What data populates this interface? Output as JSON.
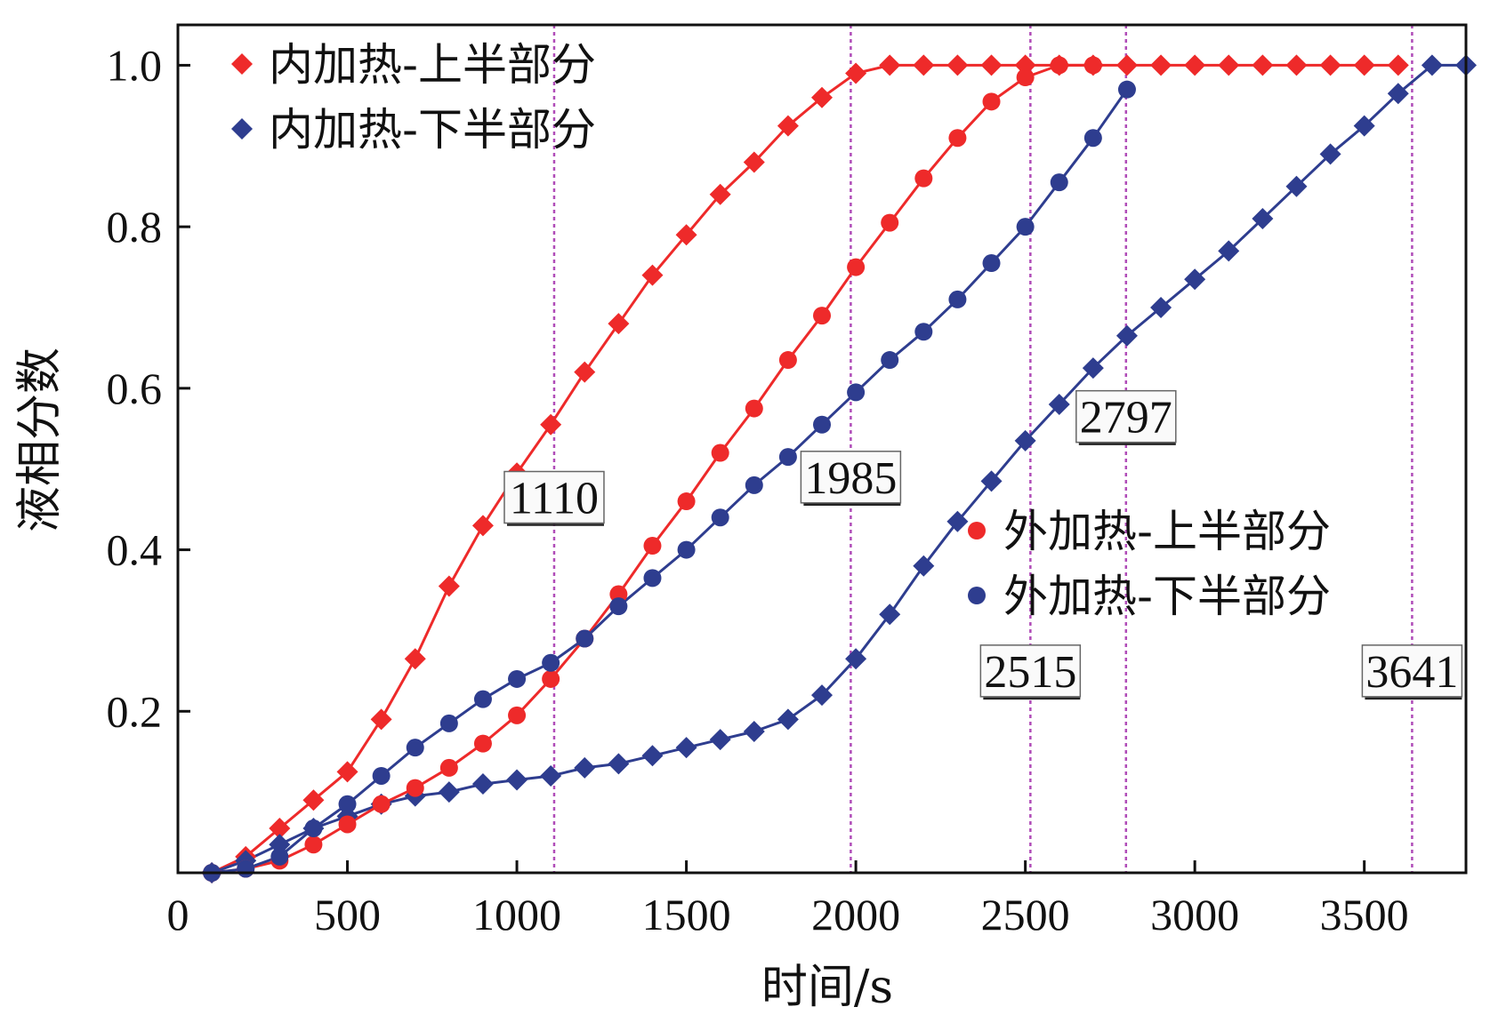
{
  "chart_data": {
    "type": "line",
    "title": "",
    "xlabel": "时间/s",
    "ylabel": "液相分数",
    "xlim": [
      0,
      3800
    ],
    "ylim": [
      0,
      1.05
    ],
    "xticks": [
      0,
      500,
      1000,
      1500,
      2000,
      2500,
      3000,
      3500
    ],
    "xtick_labels": [
      "0",
      "500",
      "1000",
      "1500",
      "2000",
      "2500",
      "3000",
      "3500"
    ],
    "yticks": [
      0.2,
      0.4,
      0.6,
      0.8,
      1.0
    ],
    "ytick_labels": [
      "0.2",
      "0.4",
      "0.6",
      "0.8",
      "1.0"
    ],
    "grid": false,
    "colors": {
      "red": "#ee2a2a",
      "blue": "#2e3d8f",
      "guide": "#b04cb8"
    },
    "vlines": [
      1110,
      1985,
      2515,
      2797,
      3641
    ],
    "annotations": [
      {
        "text": "1110",
        "x": 1110,
        "y": 0.465
      },
      {
        "text": "1985",
        "x": 1985,
        "y": 0.49
      },
      {
        "text": "2797",
        "x": 2797,
        "y": 0.565
      },
      {
        "text": "2515",
        "x": 2515,
        "y": 0.25
      },
      {
        "text": "3641",
        "x": 3641,
        "y": 0.25
      }
    ],
    "legends": [
      {
        "placement": "top-left",
        "items": [
          {
            "label": "内加热-上半部分",
            "series": 0
          },
          {
            "label": "内加热-下半部分",
            "series": 1
          }
        ]
      },
      {
        "placement": "center-right",
        "items": [
          {
            "label": "外加热-上半部分",
            "series": 2
          },
          {
            "label": "外加热-下半部分",
            "series": 3
          }
        ]
      }
    ],
    "series": [
      {
        "name": "内加热-上半部分",
        "color": "#ee2a2a",
        "marker": "diamond",
        "x": [
          100,
          200,
          300,
          400,
          500,
          600,
          700,
          800,
          900,
          1000,
          1100,
          1200,
          1300,
          1400,
          1500,
          1600,
          1700,
          1800,
          1900,
          2000,
          2100,
          2200,
          2300,
          2400,
          2500,
          2600,
          2700,
          2800,
          2900,
          3000,
          3100,
          3200,
          3300,
          3400,
          3500,
          3600
        ],
        "y": [
          0,
          0.02,
          0.055,
          0.09,
          0.125,
          0.19,
          0.265,
          0.355,
          0.43,
          0.495,
          0.555,
          0.62,
          0.68,
          0.74,
          0.79,
          0.84,
          0.88,
          0.925,
          0.96,
          0.99,
          1.0,
          1.0,
          1.0,
          1.0,
          1.0,
          1.0,
          1.0,
          1.0,
          1.0,
          1.0,
          1.0,
          1.0,
          1.0,
          1.0,
          1.0,
          1.0
        ]
      },
      {
        "name": "内加热-下半部分",
        "color": "#2e3d8f",
        "marker": "diamond",
        "x": [
          100,
          200,
          300,
          400,
          500,
          600,
          700,
          800,
          900,
          1000,
          1100,
          1200,
          1300,
          1400,
          1500,
          1600,
          1700,
          1800,
          1900,
          2000,
          2100,
          2200,
          2300,
          2400,
          2500,
          2600,
          2700,
          2800,
          2900,
          3000,
          3100,
          3200,
          3300,
          3400,
          3500,
          3600,
          3700,
          3800
        ],
        "y": [
          0,
          0.015,
          0.035,
          0.055,
          0.07,
          0.085,
          0.095,
          0.1,
          0.11,
          0.115,
          0.12,
          0.13,
          0.135,
          0.145,
          0.155,
          0.165,
          0.175,
          0.19,
          0.22,
          0.265,
          0.32,
          0.38,
          0.435,
          0.485,
          0.535,
          0.58,
          0.625,
          0.665,
          0.7,
          0.735,
          0.77,
          0.81,
          0.85,
          0.89,
          0.925,
          0.965,
          1.0,
          1.0
        ]
      },
      {
        "name": "外加热-上半部分",
        "color": "#ee2a2a",
        "marker": "circle",
        "x": [
          100,
          200,
          300,
          400,
          500,
          600,
          700,
          800,
          900,
          1000,
          1100,
          1200,
          1300,
          1400,
          1500,
          1600,
          1700,
          1800,
          1900,
          2000,
          2100,
          2200,
          2300,
          2400,
          2500,
          2600,
          2700
        ],
        "y": [
          0,
          0.005,
          0.015,
          0.035,
          0.06,
          0.085,
          0.105,
          0.13,
          0.16,
          0.195,
          0.24,
          0.29,
          0.345,
          0.405,
          0.46,
          0.52,
          0.575,
          0.635,
          0.69,
          0.75,
          0.805,
          0.86,
          0.91,
          0.955,
          0.985,
          1.0,
          1.0
        ]
      },
      {
        "name": "外加热-下半部分",
        "color": "#2e3d8f",
        "marker": "circle",
        "x": [
          100,
          200,
          300,
          400,
          500,
          600,
          700,
          800,
          900,
          1000,
          1100,
          1200,
          1300,
          1400,
          1500,
          1600,
          1700,
          1800,
          1900,
          2000,
          2100,
          2200,
          2300,
          2400,
          2500,
          2600,
          2700,
          2800
        ],
        "y": [
          0,
          0.005,
          0.02,
          0.055,
          0.085,
          0.12,
          0.155,
          0.185,
          0.215,
          0.24,
          0.26,
          0.29,
          0.33,
          0.365,
          0.4,
          0.44,
          0.48,
          0.515,
          0.555,
          0.595,
          0.635,
          0.67,
          0.71,
          0.755,
          0.8,
          0.855,
          0.91,
          0.97
        ]
      }
    ]
  }
}
